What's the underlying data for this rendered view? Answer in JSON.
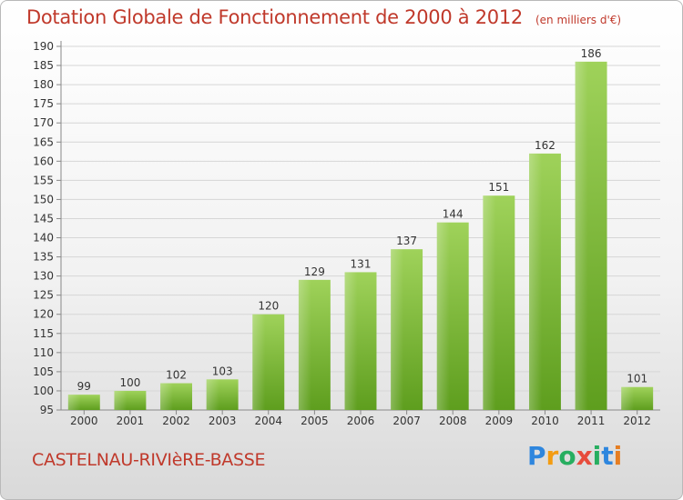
{
  "title": "Dotation Globale de Fonctionnement de 2000 à 2012",
  "unit": "(en milliers d'€)",
  "town": "CASTELNAU-RIVIèRE-BASSE",
  "logo": {
    "letters": [
      "P",
      "r",
      "o",
      "x",
      "i",
      "t",
      "i"
    ],
    "colors": [
      "#2e86de",
      "#f39c12",
      "#27ae60",
      "#e74c3c",
      "#27ae60",
      "#2e86de",
      "#e67e22"
    ]
  },
  "colors": {
    "bar_top": "#9fd25a",
    "bar_bottom": "#5e9e1e",
    "text": "#c0392b",
    "grid": "#d6d6d6"
  },
  "chart_data": {
    "type": "bar",
    "title": "Dotation Globale de Fonctionnement de 2000 à 2012",
    "subtitle": "(en milliers d'€)",
    "categories": [
      "2000",
      "2001",
      "2002",
      "2003",
      "2004",
      "2005",
      "2006",
      "2007",
      "2008",
      "2009",
      "2010",
      "2011",
      "2012"
    ],
    "values": [
      99,
      100,
      102,
      103,
      120,
      129,
      131,
      137,
      144,
      151,
      162,
      186,
      101
    ],
    "ylim": [
      95,
      190
    ],
    "ytick_step": 5,
    "grid": true
  }
}
